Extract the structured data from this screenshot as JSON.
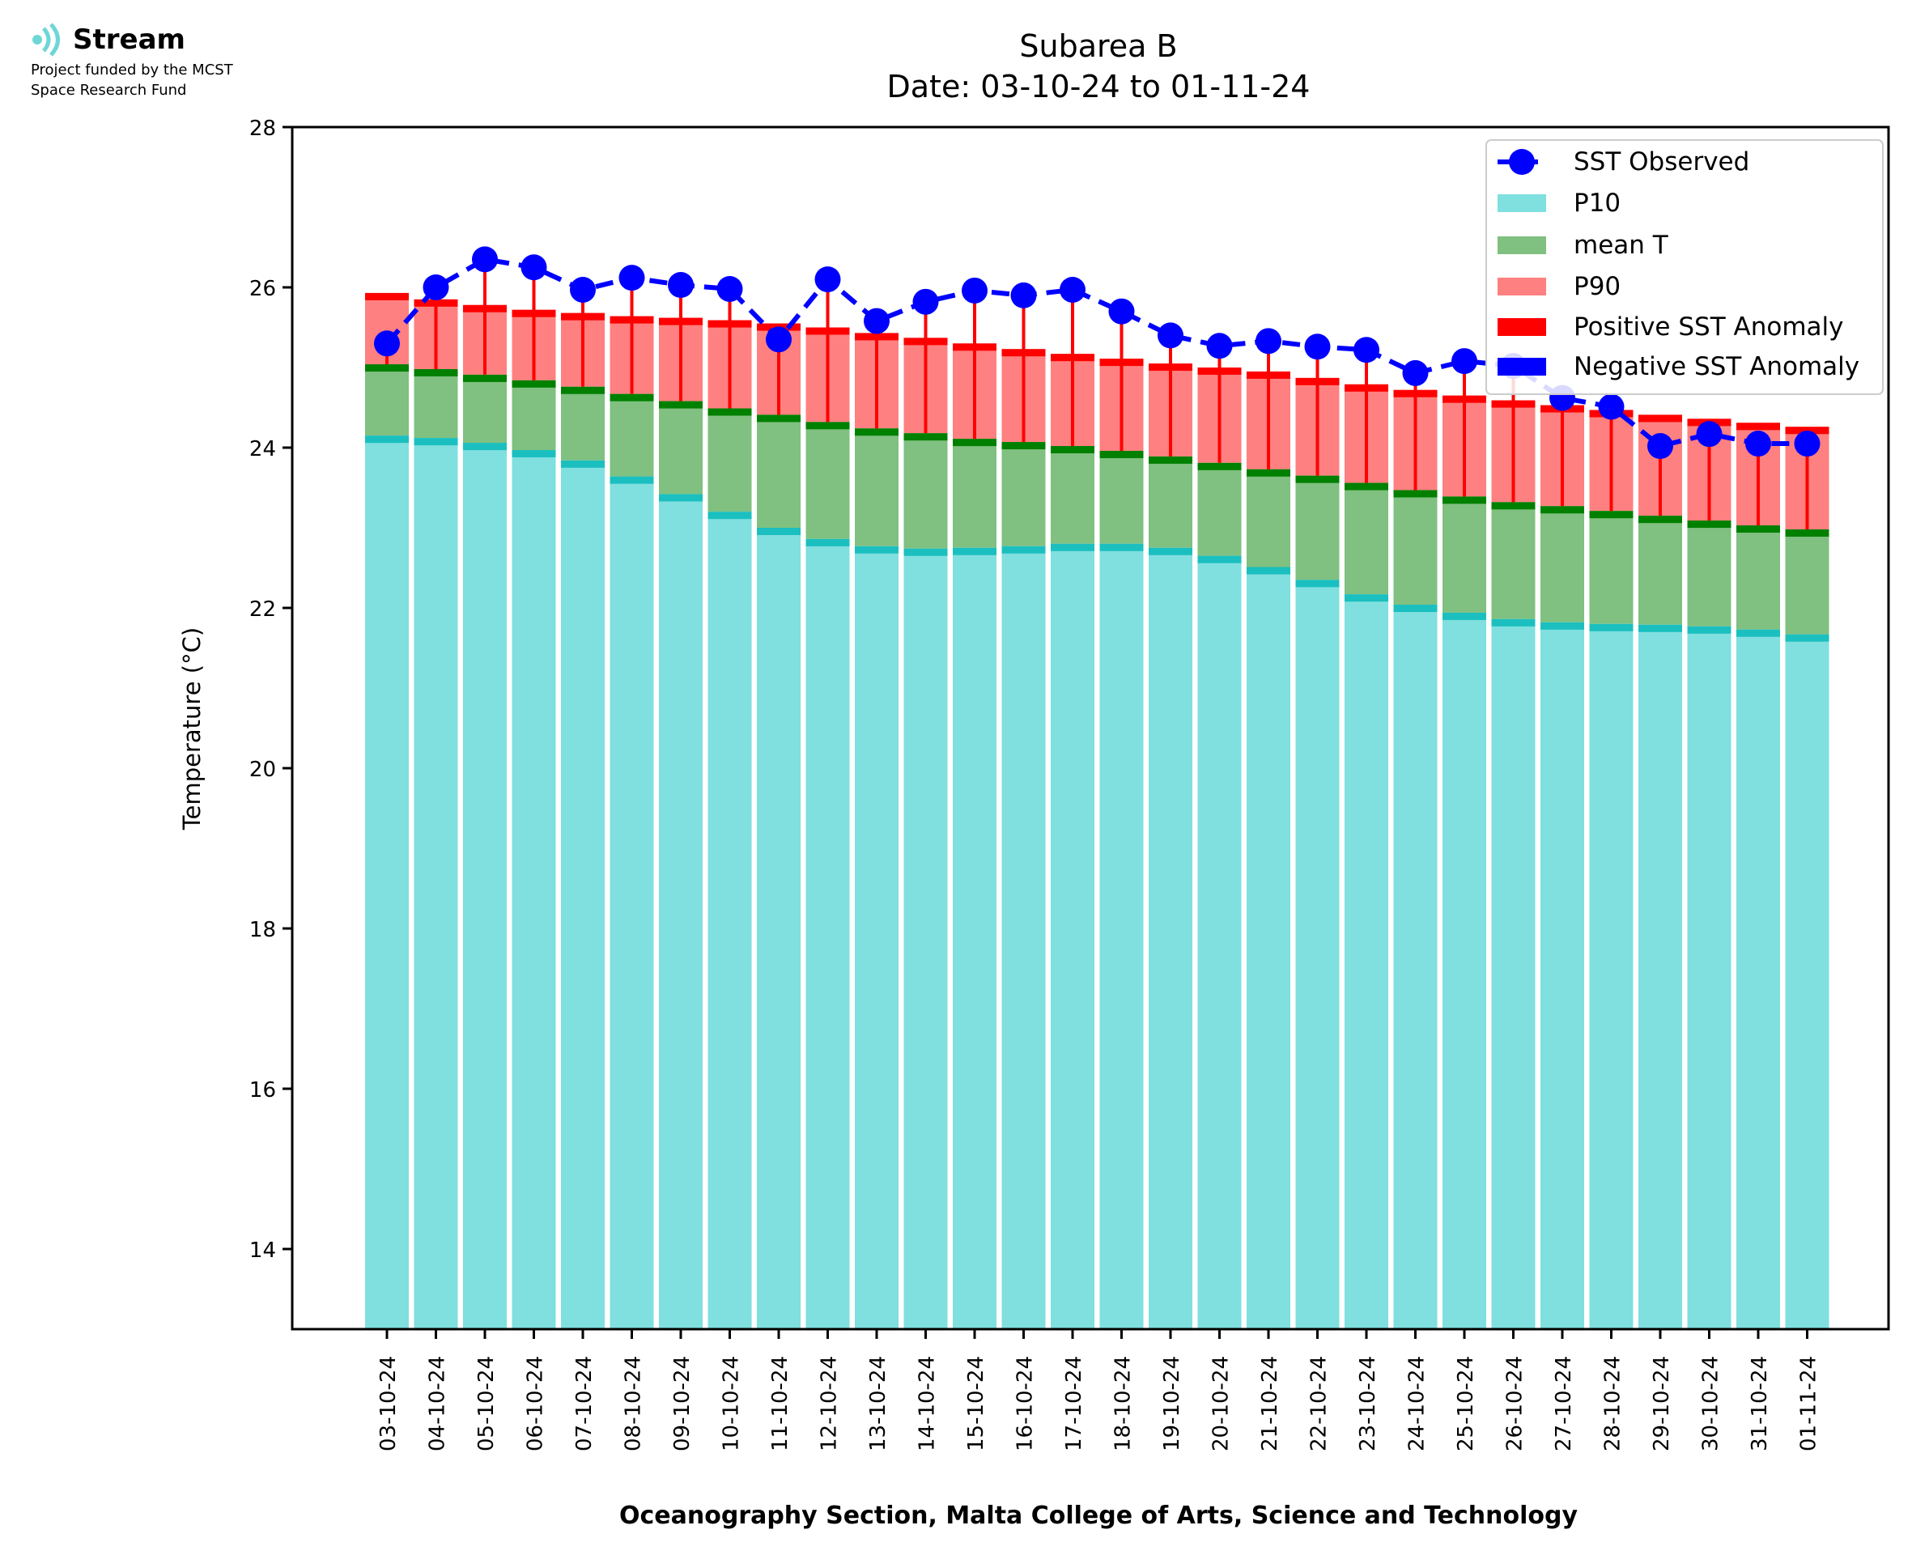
{
  "logo": {
    "name": "Stream",
    "funding_line1": "Project funded by the MCST",
    "funding_line2": "Space Research Fund"
  },
  "chart_data": {
    "type": "bar",
    "title": "Subarea B",
    "subtitle": "Date: 03-10-24 to 01-11-24",
    "xlabel": "Oceanography Section, Malta College of Arts, Science and Technology",
    "ylabel": "Temperature (°C)",
    "ylim": [
      13,
      28
    ],
    "yticks": [
      14,
      16,
      18,
      20,
      22,
      24,
      26,
      28
    ],
    "grid": false,
    "legend_position": "top-right",
    "categories": [
      "03-10-24",
      "04-10-24",
      "05-10-24",
      "06-10-24",
      "07-10-24",
      "08-10-24",
      "09-10-24",
      "10-10-24",
      "11-10-24",
      "12-10-24",
      "13-10-24",
      "14-10-24",
      "15-10-24",
      "16-10-24",
      "17-10-24",
      "18-10-24",
      "19-10-24",
      "20-10-24",
      "21-10-24",
      "22-10-24",
      "23-10-24",
      "24-10-24",
      "25-10-24",
      "26-10-24",
      "27-10-24",
      "28-10-24",
      "29-10-24",
      "30-10-24",
      "31-10-24",
      "01-11-24"
    ],
    "series": [
      {
        "name": "SST Observed",
        "type": "line",
        "color": "#0000ff",
        "values": [
          25.3,
          26.0,
          26.35,
          26.25,
          25.97,
          26.12,
          26.03,
          25.98,
          25.35,
          26.1,
          25.58,
          25.82,
          25.96,
          25.9,
          25.97,
          25.7,
          25.4,
          25.27,
          25.33,
          25.26,
          25.22,
          24.93,
          25.08,
          25.02,
          24.62,
          24.51,
          24.02,
          24.17,
          24.05,
          24.05
        ]
      },
      {
        "name": "P10",
        "color": "#80dfdf",
        "edge_color": "#1bbfbf",
        "values": [
          24.15,
          24.12,
          24.06,
          23.97,
          23.84,
          23.64,
          23.42,
          23.2,
          23.0,
          22.86,
          22.77,
          22.74,
          22.75,
          22.77,
          22.8,
          22.8,
          22.75,
          22.65,
          22.51,
          22.35,
          22.17,
          22.04,
          21.94,
          21.86,
          21.82,
          21.8,
          21.79,
          21.77,
          21.73,
          21.67
        ]
      },
      {
        "name": "mean T",
        "color": "#80c080",
        "edge_color": "#008000",
        "values": [
          25.04,
          24.98,
          24.91,
          24.84,
          24.76,
          24.67,
          24.58,
          24.49,
          24.41,
          24.32,
          24.24,
          24.18,
          24.11,
          24.07,
          24.02,
          23.96,
          23.89,
          23.81,
          23.73,
          23.65,
          23.56,
          23.47,
          23.39,
          23.32,
          23.27,
          23.21,
          23.15,
          23.09,
          23.03,
          22.98
        ]
      },
      {
        "name": "P90",
        "color": "#ff8080",
        "edge_color": "#ff0000",
        "values": [
          25.93,
          25.85,
          25.78,
          25.72,
          25.68,
          25.64,
          25.62,
          25.59,
          25.55,
          25.5,
          25.43,
          25.37,
          25.3,
          25.23,
          25.17,
          25.11,
          25.05,
          25.0,
          24.95,
          24.87,
          24.79,
          24.72,
          24.65,
          24.59,
          24.53,
          24.47,
          24.41,
          24.36,
          24.31,
          24.26
        ]
      },
      {
        "name": "Positive SST Anomaly",
        "color": "#ff0000"
      },
      {
        "name": "Negative SST Anomaly",
        "color": "#0000ff"
      }
    ]
  }
}
